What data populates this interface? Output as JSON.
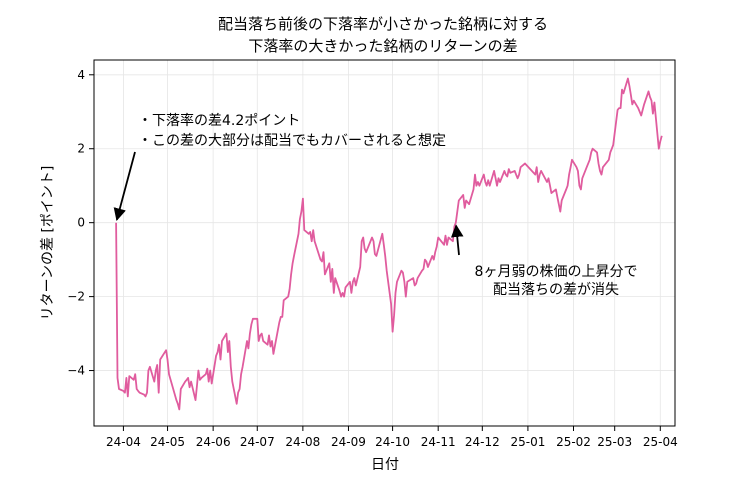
{
  "chart_data": {
    "type": "line",
    "title": [
      "配当落ち前後の下落率が小さかった銘柄に対する",
      "下落率の大きかった銘柄のリターンの差"
    ],
    "xlabel": "日付",
    "ylabel": "リターンの差 [ポイント]",
    "x_ticks": [
      "24-04",
      "24-05",
      "24-06",
      "24-07",
      "24-08",
      "24-09",
      "24-10",
      "24-11",
      "24-12",
      "25-01",
      "25-02",
      "25-03",
      "25-04"
    ],
    "y_ticks": [
      -4,
      -2,
      0,
      2,
      4
    ],
    "xlim": [
      "2024-03-12",
      "2025-04-11"
    ],
    "ylim": [
      -5.5,
      4.4
    ],
    "grid": true,
    "line_color": "#e05c9e",
    "series": [
      {
        "name": "リターンの差",
        "points": [
          [
            "2024-03-27",
            0.0
          ],
          [
            "2024-03-28",
            -4.2
          ],
          [
            "2024-03-29",
            -4.5
          ],
          [
            "2024-04-01",
            -4.55
          ],
          [
            "2024-04-02",
            -4.6
          ],
          [
            "2024-04-03",
            -4.2
          ],
          [
            "2024-04-04",
            -4.7
          ],
          [
            "2024-04-05",
            -4.15
          ],
          [
            "2024-04-08",
            -4.25
          ],
          [
            "2024-04-09",
            -4.1
          ],
          [
            "2024-04-10",
            -4.5
          ],
          [
            "2024-04-11",
            -4.55
          ],
          [
            "2024-04-12",
            -4.6
          ],
          [
            "2024-04-15",
            -4.65
          ],
          [
            "2024-04-16",
            -4.7
          ],
          [
            "2024-04-17",
            -4.6
          ],
          [
            "2024-04-18",
            -4.0
          ],
          [
            "2024-04-19",
            -3.9
          ],
          [
            "2024-04-22",
            -4.3
          ],
          [
            "2024-04-23",
            -4.0
          ],
          [
            "2024-04-24",
            -3.85
          ],
          [
            "2024-04-25",
            -4.6
          ],
          [
            "2024-04-26",
            -3.7
          ],
          [
            "2024-04-30",
            -3.45
          ],
          [
            "2024-05-01",
            -3.7
          ],
          [
            "2024-05-02",
            -4.1
          ],
          [
            "2024-05-07",
            -4.8
          ],
          [
            "2024-05-08",
            -4.9
          ],
          [
            "2024-05-09",
            -5.05
          ],
          [
            "2024-05-10",
            -4.5
          ],
          [
            "2024-05-13",
            -4.3
          ],
          [
            "2024-05-14",
            -4.25
          ],
          [
            "2024-05-15",
            -4.2
          ],
          [
            "2024-05-16",
            -4.45
          ],
          [
            "2024-05-17",
            -4.3
          ],
          [
            "2024-05-20",
            -4.8
          ],
          [
            "2024-05-21",
            -4.4
          ],
          [
            "2024-05-22",
            -4.0
          ],
          [
            "2024-05-23",
            -4.25
          ],
          [
            "2024-05-24",
            -4.2
          ],
          [
            "2024-05-27",
            -4.1
          ],
          [
            "2024-05-28",
            -3.95
          ],
          [
            "2024-05-29",
            -4.3
          ],
          [
            "2024-05-30",
            -4.0
          ],
          [
            "2024-05-31",
            -4.35
          ],
          [
            "2024-06-03",
            -3.6
          ],
          [
            "2024-06-04",
            -3.5
          ],
          [
            "2024-06-05",
            -3.3
          ],
          [
            "2024-06-06",
            -3.7
          ],
          [
            "2024-06-07",
            -3.2
          ],
          [
            "2024-06-10",
            -3.0
          ],
          [
            "2024-06-11",
            -3.5
          ],
          [
            "2024-06-12",
            -3.2
          ],
          [
            "2024-06-13",
            -3.9
          ],
          [
            "2024-06-14",
            -4.3
          ],
          [
            "2024-06-17",
            -4.9
          ],
          [
            "2024-06-18",
            -4.6
          ],
          [
            "2024-06-19",
            -4.5
          ],
          [
            "2024-06-20",
            -4.1
          ],
          [
            "2024-06-21",
            -3.9
          ],
          [
            "2024-06-24",
            -3.2
          ],
          [
            "2024-06-25",
            -3.4
          ],
          [
            "2024-06-26",
            -3.0
          ],
          [
            "2024-06-27",
            -2.75
          ],
          [
            "2024-06-28",
            -2.6
          ],
          [
            "2024-07-01",
            -2.6
          ],
          [
            "2024-07-02",
            -3.2
          ],
          [
            "2024-07-03",
            -3.05
          ],
          [
            "2024-07-04",
            -3.0
          ],
          [
            "2024-07-05",
            -3.2
          ],
          [
            "2024-07-08",
            -3.3
          ],
          [
            "2024-07-09",
            -3.05
          ],
          [
            "2024-07-10",
            -3.35
          ],
          [
            "2024-07-11",
            -3.2
          ],
          [
            "2024-07-12",
            -3.55
          ],
          [
            "2024-07-15",
            -2.9
          ],
          [
            "2024-07-16",
            -2.7
          ],
          [
            "2024-07-17",
            -2.55
          ],
          [
            "2024-07-18",
            -2.55
          ],
          [
            "2024-07-19",
            -2.1
          ],
          [
            "2024-07-22",
            -2.0
          ],
          [
            "2024-07-23",
            -1.8
          ],
          [
            "2024-07-24",
            -1.4
          ],
          [
            "2024-07-25",
            -1.1
          ],
          [
            "2024-07-26",
            -0.9
          ],
          [
            "2024-07-29",
            -0.3
          ],
          [
            "2024-07-30",
            0.1
          ],
          [
            "2024-07-31",
            0.3
          ],
          [
            "2024-08-01",
            0.65
          ],
          [
            "2024-08-02",
            -0.2
          ],
          [
            "2024-08-05",
            -0.3
          ],
          [
            "2024-08-06",
            -0.25
          ],
          [
            "2024-08-07",
            -0.5
          ],
          [
            "2024-08-08",
            -0.2
          ],
          [
            "2024-08-09",
            -0.5
          ],
          [
            "2024-08-13",
            -1.0
          ],
          [
            "2024-08-14",
            -1.05
          ],
          [
            "2024-08-15",
            -0.8
          ],
          [
            "2024-08-16",
            -1.4
          ],
          [
            "2024-08-19",
            -1.1
          ],
          [
            "2024-08-20",
            -1.6
          ],
          [
            "2024-08-21",
            -1.25
          ],
          [
            "2024-08-22",
            -1.9
          ],
          [
            "2024-08-23",
            -1.5
          ],
          [
            "2024-08-26",
            -1.85
          ],
          [
            "2024-08-27",
            -2.0
          ],
          [
            "2024-08-28",
            -1.9
          ],
          [
            "2024-08-29",
            -2.0
          ],
          [
            "2024-08-30",
            -1.75
          ],
          [
            "2024-09-02",
            -1.6
          ],
          [
            "2024-09-03",
            -1.9
          ],
          [
            "2024-09-04",
            -1.6
          ],
          [
            "2024-09-05",
            -1.5
          ],
          [
            "2024-09-06",
            -1.7
          ],
          [
            "2024-09-09",
            -1.2
          ],
          [
            "2024-09-10",
            -0.5
          ],
          [
            "2024-09-11",
            -0.4
          ],
          [
            "2024-09-12",
            -0.7
          ],
          [
            "2024-09-13",
            -0.8
          ],
          [
            "2024-09-17",
            -0.4
          ],
          [
            "2024-09-18",
            -0.5
          ],
          [
            "2024-09-19",
            -0.85
          ],
          [
            "2024-09-20",
            -0.9
          ],
          [
            "2024-09-24",
            -0.3
          ],
          [
            "2024-09-25",
            -0.6
          ],
          [
            "2024-09-26",
            -0.9
          ],
          [
            "2024-09-27",
            -1.3
          ],
          [
            "2024-09-30",
            -2.2
          ],
          [
            "2024-10-01",
            -2.95
          ],
          [
            "2024-10-02",
            -2.5
          ],
          [
            "2024-10-03",
            -1.9
          ],
          [
            "2024-10-04",
            -1.6
          ],
          [
            "2024-10-07",
            -1.3
          ],
          [
            "2024-10-08",
            -1.35
          ],
          [
            "2024-10-09",
            -1.6
          ],
          [
            "2024-10-10",
            -2.0
          ],
          [
            "2024-10-11",
            -1.6
          ],
          [
            "2024-10-15",
            -1.5
          ],
          [
            "2024-10-16",
            -1.7
          ],
          [
            "2024-10-17",
            -1.65
          ],
          [
            "2024-10-18",
            -1.5
          ],
          [
            "2024-10-21",
            -1.3
          ],
          [
            "2024-10-22",
            -1.25
          ],
          [
            "2024-10-23",
            -1.0
          ],
          [
            "2024-10-24",
            -1.05
          ],
          [
            "2024-10-25",
            -1.2
          ],
          [
            "2024-10-28",
            -0.9
          ],
          [
            "2024-10-29",
            -1.0
          ],
          [
            "2024-10-30",
            -0.8
          ],
          [
            "2024-10-31",
            -0.65
          ],
          [
            "2024-11-01",
            -0.4
          ],
          [
            "2024-11-05",
            -0.6
          ],
          [
            "2024-11-06",
            -0.35
          ],
          [
            "2024-11-07",
            -0.6
          ],
          [
            "2024-11-08",
            -0.4
          ],
          [
            "2024-11-11",
            -0.5
          ],
          [
            "2024-11-12",
            -0.1
          ],
          [
            "2024-11-13",
            0.0
          ],
          [
            "2024-11-14",
            0.3
          ],
          [
            "2024-11-15",
            0.6
          ],
          [
            "2024-11-18",
            0.75
          ],
          [
            "2024-11-19",
            0.4
          ],
          [
            "2024-11-20",
            0.6
          ],
          [
            "2024-11-21",
            0.55
          ],
          [
            "2024-11-22",
            0.5
          ],
          [
            "2024-11-25",
            0.9
          ],
          [
            "2024-11-26",
            1.3
          ],
          [
            "2024-11-27",
            1.0
          ],
          [
            "2024-11-28",
            1.1
          ],
          [
            "2024-11-29",
            1.0
          ],
          [
            "2024-12-02",
            1.3
          ],
          [
            "2024-12-03",
            1.1
          ],
          [
            "2024-12-04",
            1.0
          ],
          [
            "2024-12-05",
            1.15
          ],
          [
            "2024-12-06",
            1.0
          ],
          [
            "2024-12-09",
            1.4
          ],
          [
            "2024-12-10",
            1.2
          ],
          [
            "2024-12-11",
            1.0
          ],
          [
            "2024-12-12",
            1.2
          ],
          [
            "2024-12-13",
            1.1
          ],
          [
            "2024-12-16",
            1.4
          ],
          [
            "2024-12-17",
            1.3
          ],
          [
            "2024-12-18",
            1.25
          ],
          [
            "2024-12-19",
            1.45
          ],
          [
            "2024-12-20",
            1.35
          ],
          [
            "2024-12-23",
            1.4
          ],
          [
            "2024-12-24",
            1.3
          ],
          [
            "2024-12-25",
            1.2
          ],
          [
            "2024-12-26",
            1.3
          ],
          [
            "2024-12-27",
            1.5
          ],
          [
            "2024-12-30",
            1.6
          ],
          [
            "2025-01-06",
            1.3
          ],
          [
            "2025-01-07",
            1.5
          ],
          [
            "2025-01-08",
            1.1
          ],
          [
            "2025-01-09",
            1.3
          ],
          [
            "2025-01-10",
            1.4
          ],
          [
            "2025-01-14",
            1.1
          ],
          [
            "2025-01-15",
            1.2
          ],
          [
            "2025-01-16",
            1.0
          ],
          [
            "2025-01-17",
            0.8
          ],
          [
            "2025-01-20",
            0.9
          ],
          [
            "2025-01-21",
            0.7
          ],
          [
            "2025-01-22",
            0.5
          ],
          [
            "2025-01-23",
            0.3
          ],
          [
            "2025-01-24",
            0.6
          ],
          [
            "2025-01-27",
            0.9
          ],
          [
            "2025-01-28",
            1.0
          ],
          [
            "2025-01-29",
            1.3
          ],
          [
            "2025-01-30",
            1.5
          ],
          [
            "2025-01-31",
            1.7
          ],
          [
            "2025-02-03",
            1.5
          ],
          [
            "2025-02-04",
            1.4
          ],
          [
            "2025-02-05",
            1.0
          ],
          [
            "2025-02-06",
            0.9
          ],
          [
            "2025-02-07",
            1.2
          ],
          [
            "2025-02-10",
            1.5
          ],
          [
            "2025-02-12",
            1.7
          ],
          [
            "2025-02-13",
            1.9
          ],
          [
            "2025-02-14",
            2.0
          ],
          [
            "2025-02-17",
            1.9
          ],
          [
            "2025-02-18",
            1.6
          ],
          [
            "2025-02-19",
            1.4
          ],
          [
            "2025-02-20",
            1.3
          ],
          [
            "2025-02-21",
            1.5
          ],
          [
            "2025-02-25",
            1.7
          ],
          [
            "2025-02-26",
            1.9
          ],
          [
            "2025-02-27",
            2.0
          ],
          [
            "2025-02-28",
            2.1
          ],
          [
            "2025-03-03",
            3.05
          ],
          [
            "2025-03-04",
            3.1
          ],
          [
            "2025-03-05",
            3.1
          ],
          [
            "2025-03-06",
            3.6
          ],
          [
            "2025-03-07",
            3.5
          ],
          [
            "2025-03-10",
            3.9
          ],
          [
            "2025-03-11",
            3.7
          ],
          [
            "2025-03-12",
            3.45
          ],
          [
            "2025-03-13",
            3.2
          ],
          [
            "2025-03-14",
            3.3
          ],
          [
            "2025-03-17",
            3.1
          ],
          [
            "2025-03-18",
            3.0
          ],
          [
            "2025-03-19",
            2.9
          ],
          [
            "2025-03-21",
            3.2
          ],
          [
            "2025-03-24",
            3.55
          ],
          [
            "2025-03-25",
            3.4
          ],
          [
            "2025-03-26",
            3.3
          ],
          [
            "2025-03-27",
            2.95
          ],
          [
            "2025-03-28",
            3.25
          ],
          [
            "2025-03-31",
            2.0
          ],
          [
            "2025-04-01",
            2.2
          ],
          [
            "2025-04-02",
            2.35
          ]
        ]
      }
    ],
    "annotations": [
      {
        "lines": [
          "・下落率の差4.2ポイント",
          "・この差の大部分は配当でもカバーされると想定"
        ],
        "target": [
          "2024-03-27",
          0.0
        ],
        "text_anchor": "left"
      },
      {
        "lines": [
          "8ヶ月弱の株価の上昇分で",
          "配当落ちの差が消失"
        ],
        "target": [
          "2024-11-13",
          0.0
        ],
        "text_anchor": "center"
      }
    ]
  }
}
